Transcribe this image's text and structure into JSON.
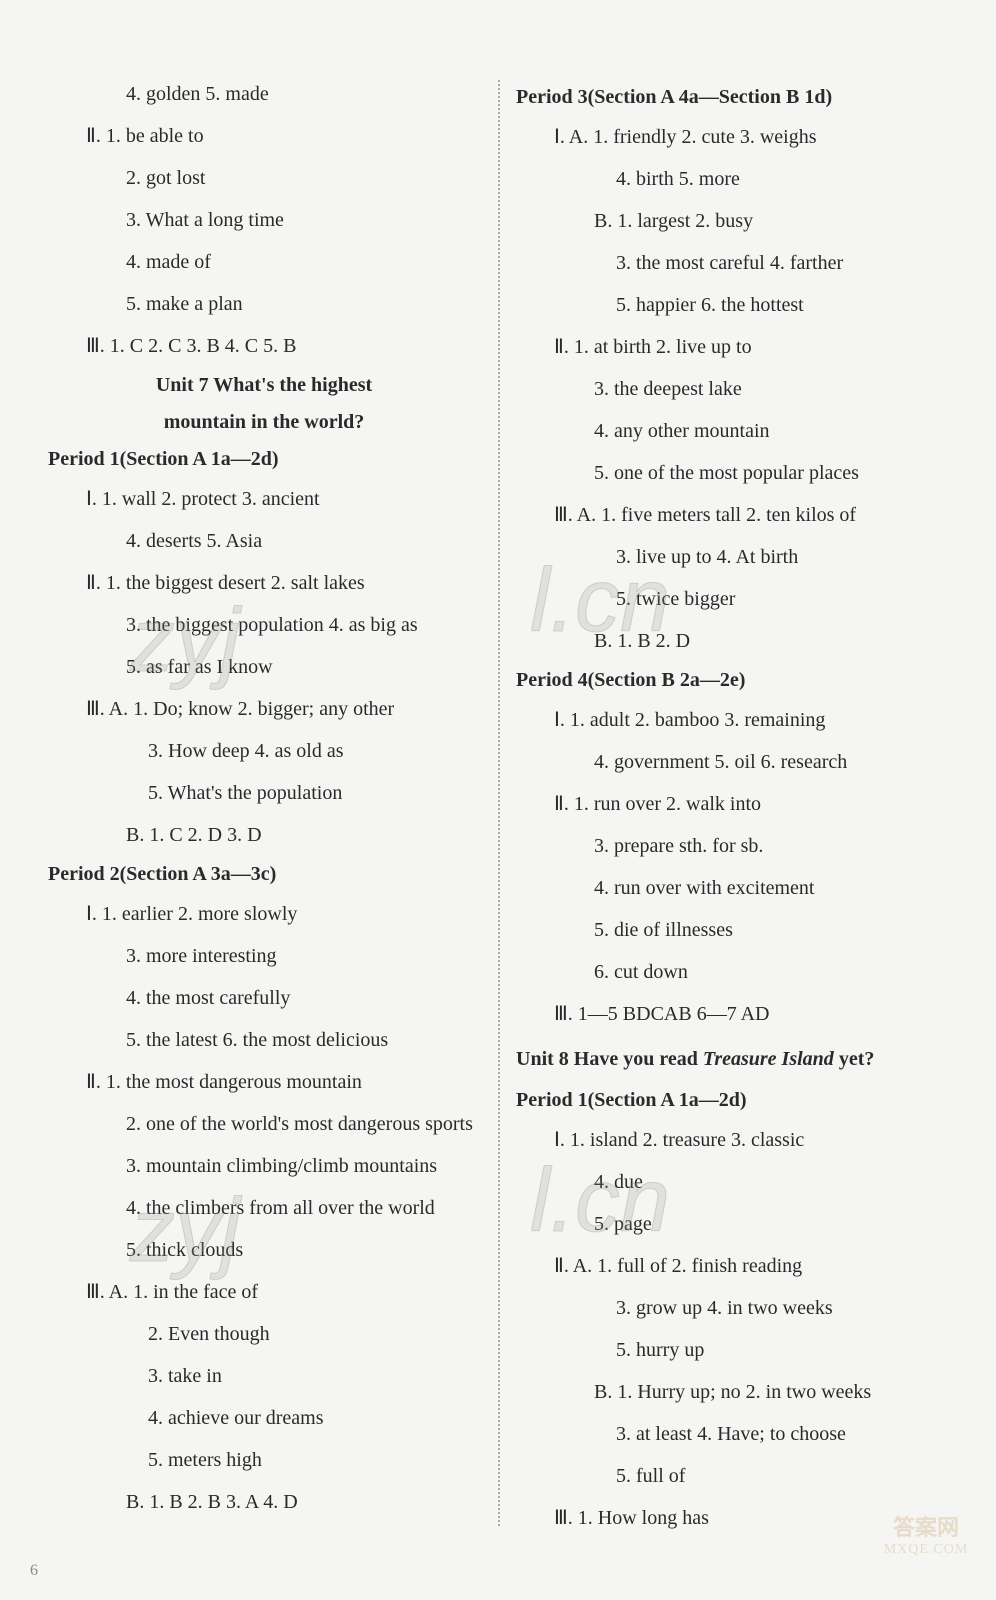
{
  "left_column": [
    {
      "cls": "line indent2",
      "text": "4. golden   5. made"
    },
    {
      "cls": "line indent1",
      "text": "Ⅱ. 1. be able to"
    },
    {
      "cls": "line indent2",
      "text": "2. got lost"
    },
    {
      "cls": "line indent2",
      "text": "3. What a long time"
    },
    {
      "cls": "line indent2",
      "text": "4. made of"
    },
    {
      "cls": "line indent2",
      "text": "5. make a plan"
    },
    {
      "cls": "line indent1",
      "text": "Ⅲ. 1. C   2. C   3. B   4. C   5. B"
    },
    {
      "cls": "unit-title",
      "text": "Unit 7    What's the highest"
    },
    {
      "cls": "unit-title",
      "text": "mountain in the world?"
    },
    {
      "cls": "period",
      "text": "Period 1(Section A 1a—2d)"
    },
    {
      "cls": "line indent1",
      "text": "Ⅰ. 1. wall   2. protect   3. ancient"
    },
    {
      "cls": "line indent2",
      "text": "4. deserts   5. Asia"
    },
    {
      "cls": "line indent1",
      "text": "Ⅱ. 1. the biggest desert   2. salt lakes"
    },
    {
      "cls": "line indent2",
      "text": "3. the biggest population   4. as big as"
    },
    {
      "cls": "line indent2",
      "text": "5. as far as I know"
    },
    {
      "cls": "line indent1",
      "text": "Ⅲ. A. 1. Do; know   2. bigger; any other"
    },
    {
      "cls": "line indent3",
      "text": "3. How deep   4. as old as"
    },
    {
      "cls": "line indent3",
      "text": "5. What's the population"
    },
    {
      "cls": "line indent2",
      "text": "B. 1. C   2. D   3. D"
    },
    {
      "cls": "period",
      "text": "Period 2(Section A 3a—3c)"
    },
    {
      "cls": "line indent1",
      "text": "Ⅰ. 1. earlier   2. more slowly"
    },
    {
      "cls": "line indent2",
      "text": "3. more interesting"
    },
    {
      "cls": "line indent2",
      "text": "4. the most carefully"
    },
    {
      "cls": "line indent2",
      "text": "5. the latest   6. the most delicious"
    },
    {
      "cls": "line indent1",
      "text": "Ⅱ. 1. the most dangerous mountain"
    },
    {
      "cls": "line indent2",
      "text": "2. one of the world's most dangerous sports"
    },
    {
      "cls": "line indent2",
      "text": "3. mountain climbing/climb mountains"
    },
    {
      "cls": "line indent2",
      "text": "4. the climbers from all over the world"
    },
    {
      "cls": "line indent2",
      "text": "5. thick clouds"
    },
    {
      "cls": "line indent1",
      "text": "Ⅲ. A. 1. in the face of"
    },
    {
      "cls": "line indent3",
      "text": "2. Even though"
    },
    {
      "cls": "line indent3",
      "text": "3. take in"
    },
    {
      "cls": "line indent3",
      "text": "4. achieve our dreams"
    },
    {
      "cls": "line indent3",
      "text": "5. meters high"
    },
    {
      "cls": "line indent2",
      "text": "B. 1. B   2. B   3. A   4. D"
    }
  ],
  "right_column": [
    {
      "cls": "period",
      "text": "Period 3(Section A 4a—Section B 1d)"
    },
    {
      "cls": "line indent1",
      "text": "Ⅰ. A. 1. friendly   2. cute   3. weighs"
    },
    {
      "cls": "line indent3",
      "text": "4. birth   5. more"
    },
    {
      "cls": "line indent2",
      "text": "B. 1. largest   2. busy"
    },
    {
      "cls": "line indent3",
      "text": "3. the most careful   4. farther"
    },
    {
      "cls": "line indent3",
      "text": "5. happier   6. the hottest"
    },
    {
      "cls": "line indent1",
      "text": "Ⅱ. 1. at birth   2. live up to"
    },
    {
      "cls": "line indent2",
      "text": "3. the deepest lake"
    },
    {
      "cls": "line indent2",
      "text": "4. any other mountain"
    },
    {
      "cls": "line indent2",
      "text": "5. one of the most popular places"
    },
    {
      "cls": "line indent1",
      "text": "Ⅲ. A. 1. five meters tall   2. ten kilos of"
    },
    {
      "cls": "line indent3",
      "text": "3. live up to   4. At birth"
    },
    {
      "cls": "line indent3",
      "text": "5. twice bigger"
    },
    {
      "cls": "line indent2",
      "text": "B. 1. B   2. D"
    },
    {
      "cls": "period",
      "text": "Period 4(Section B 2a—2e)"
    },
    {
      "cls": "line indent1",
      "text": "Ⅰ. 1. adult   2. bamboo   3. remaining"
    },
    {
      "cls": "line indent2",
      "text": "4. government   5. oil   6. research"
    },
    {
      "cls": "line indent1",
      "text": "Ⅱ. 1. run over   2. walk into"
    },
    {
      "cls": "line indent2",
      "text": "3. prepare sth. for sb."
    },
    {
      "cls": "line indent2",
      "text": "4. run over with excitement"
    },
    {
      "cls": "line indent2",
      "text": "5. die of illnesses"
    },
    {
      "cls": "line indent2",
      "text": "6. cut down"
    },
    {
      "cls": "line indent1",
      "text": "Ⅲ. 1—5 BDCAB   6—7 AD"
    },
    {
      "cls": "unit-title-left",
      "html": "Unit 8    Have you read <span class='italic'>Treasure Island</span> yet?"
    },
    {
      "cls": "period",
      "text": "Period 1(Section A 1a—2d)"
    },
    {
      "cls": "line indent1",
      "text": "Ⅰ. 1. island   2. treasure   3. classic"
    },
    {
      "cls": "line indent2",
      "text": "4. due"
    },
    {
      "cls": "line indent2",
      "text": "5. page"
    },
    {
      "cls": "line indent1",
      "text": "Ⅱ. A. 1. full of   2. finish reading"
    },
    {
      "cls": "line indent3",
      "text": "3. grow up   4. in two weeks"
    },
    {
      "cls": "line indent3",
      "text": "5. hurry up"
    },
    {
      "cls": "line indent2",
      "text": "B. 1. Hurry up; no   2. in two weeks"
    },
    {
      "cls": "line indent3",
      "text": "3. at least   4. Have; to choose"
    },
    {
      "cls": "line indent3",
      "text": "5. full of"
    },
    {
      "cls": "line indent1",
      "text": "Ⅲ. 1. How long has"
    }
  ],
  "page_number": "6",
  "watermarks": {
    "wm1": "zyj",
    "wm2": "l.cn",
    "wm3": "zyj",
    "wm4": "l.cn"
  },
  "badge": {
    "line1": "答案网",
    "line2": "MXQE.COM"
  }
}
